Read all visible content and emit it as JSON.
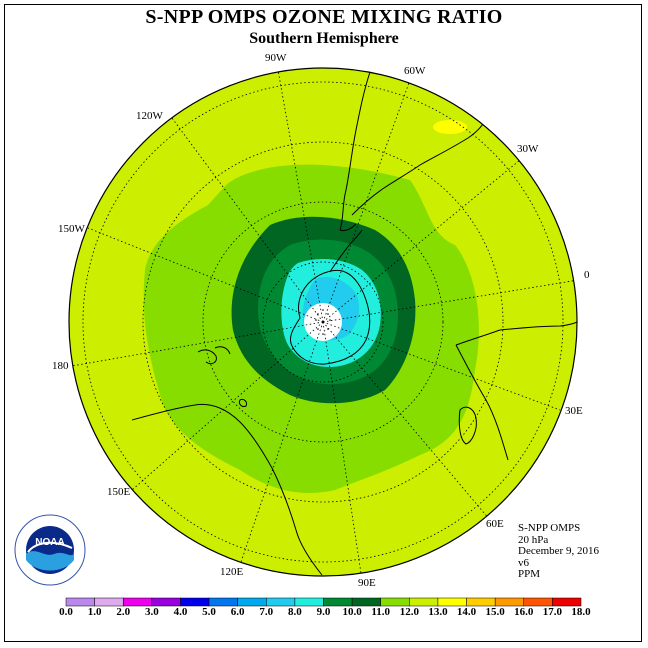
{
  "header": {
    "title": "S-NPP OMPS OZONE MIXING RATIO",
    "subtitle": "Southern Hemisphere"
  },
  "map": {
    "projection": "polar-stereographic-south",
    "longitude_labels": [
      "90W",
      "60W",
      "30W",
      "0",
      "30E",
      "60E",
      "90E",
      "120E",
      "150E",
      "180",
      "150W",
      "120W"
    ],
    "land_outline_color": "#000000",
    "background_field_color": "#ccee00"
  },
  "info": {
    "instrument": "S-NPP OMPS",
    "level": "20 hPa",
    "date": "December 9, 2016",
    "version": "v6",
    "units": "PPM"
  },
  "color_scale": {
    "labels": [
      "0.0",
      "1.0",
      "2.0",
      "3.0",
      "4.0",
      "5.0",
      "6.0",
      "7.0",
      "8.0",
      "9.0",
      "10.0",
      "11.0",
      "12.0",
      "13.0",
      "14.0",
      "15.0",
      "16.0",
      "17.0",
      "18.0"
    ],
    "colors": [
      "#bb88ee",
      "#ddaaee",
      "#ee00ee",
      "#9900dd",
      "#0000ee",
      "#0077ee",
      "#00aaee",
      "#22ccee",
      "#22eedd",
      "#008833",
      "#006622",
      "#88dd00",
      "#ccee00",
      "#ffff00",
      "#ffcc00",
      "#ff9900",
      "#ff5500",
      "#ee0000",
      "#885544"
    ]
  },
  "logo": {
    "text": "NOAA",
    "ring_text": "NATIONAL OCEANIC AND ATMOSPHERIC ADMINISTRATION",
    "bottom_text": "U.S. DEPARTMENT OF COMMERCE"
  }
}
